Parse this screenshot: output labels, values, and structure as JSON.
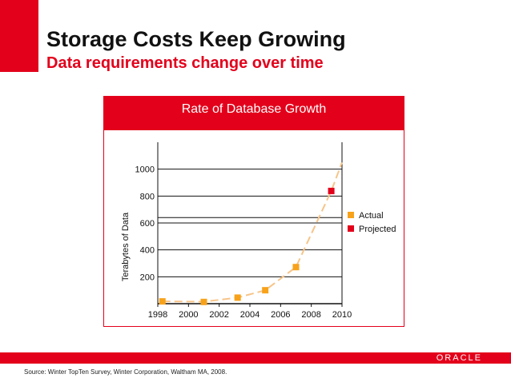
{
  "slide": {
    "title": "Storage Costs Keep Growing",
    "subtitle": "Data requirements change over time",
    "source": "Source: Winter TopTen Survey, Winter Corporation, Waltham MA, 2008.",
    "logo_text": "ORACLE"
  },
  "colors": {
    "brand_red": "#e3001b",
    "actual": "#f7a21a",
    "projected": "#e3001b",
    "trend": "#f7c489"
  },
  "chart_data": {
    "type": "scatter",
    "title": "Rate of Database Growth",
    "xlabel": "",
    "ylabel": "Terabytes of Data",
    "xlim": [
      1998,
      2010
    ],
    "ylim": [
      0,
      1200
    ],
    "xticks": [
      1998,
      2000,
      2002,
      2004,
      2006,
      2008,
      2010
    ],
    "yticks": [
      200,
      400,
      600,
      800,
      1000
    ],
    "grid": true,
    "legend_position": "right",
    "series": [
      {
        "name": "Actual",
        "points": [
          [
            1998.3,
            17
          ],
          [
            2001,
            13
          ],
          [
            2003.2,
            45
          ],
          [
            2005,
            100
          ],
          [
            2007,
            272
          ]
        ]
      },
      {
        "name": "Projected",
        "points": [
          [
            2009.3,
            838
          ]
        ]
      }
    ],
    "trend": [
      [
        1998.3,
        17
      ],
      [
        2001,
        15
      ],
      [
        2003.2,
        45
      ],
      [
        2005,
        100
      ],
      [
        2007,
        272
      ],
      [
        2009.3,
        838
      ],
      [
        2010,
        1050
      ]
    ]
  }
}
